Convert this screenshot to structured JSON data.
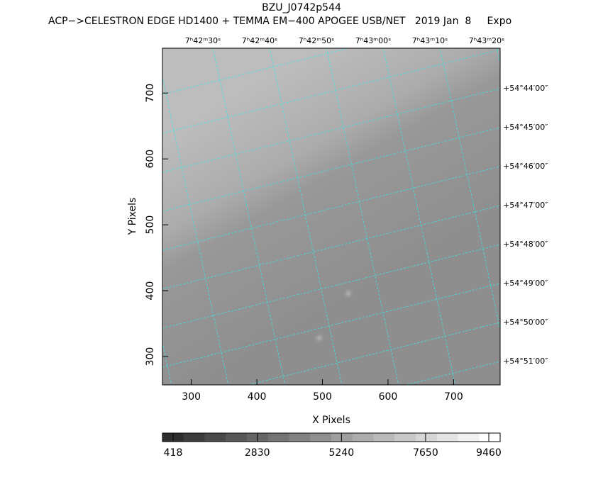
{
  "chart_data": {
    "type": "image",
    "title": "BZU_J0742p544",
    "subtitle": "ACP−>CELESTRON EDGE HD1400 + TEMMA EM−400 APOGEE USB/NET   2019 Jan  8     Expo",
    "xlabel": "X Pixels",
    "ylabel": "Y Pixels",
    "xlim": [
      256,
      771
    ],
    "xticks": [
      300,
      400,
      500,
      600,
      700
    ],
    "ylim": [
      257,
      768
    ],
    "yticks": [
      300,
      400,
      500,
      600,
      700
    ],
    "ra_labels": [
      "7ʰ42ᵐ30ˢ",
      "7ʰ42ᵐ40ˢ",
      "7ʰ42ᵐ50ˢ",
      "7ʰ43ᵐ00ˢ",
      "7ʰ43ᵐ10ˢ",
      "7ʰ43ᵐ20ˢ"
    ],
    "dec_labels": [
      "+54°44′00″",
      "+54°45′00″",
      "+54°46′00″",
      "+54°47′00″",
      "+54°48′00″",
      "+54°49′00″",
      "+54°50′00″",
      "+54°51′00″"
    ],
    "clim": [
      113,
      9785
    ],
    "cticks": [
      418,
      2830,
      5240,
      7650,
      9460
    ],
    "colorbar_colors": [
      "#2e2e2e",
      "#3c3c3c",
      "#4a4a4a",
      "#585858",
      "#666666",
      "#747474",
      "#828282",
      "#909090",
      "#9e9e9e",
      "#acacac",
      "#bababa",
      "#c8c8c8",
      "#d6d6d6",
      "#e4e4e4",
      "#f1f1f1",
      "#ffffff"
    ],
    "grid_color": "#40e0e0"
  }
}
